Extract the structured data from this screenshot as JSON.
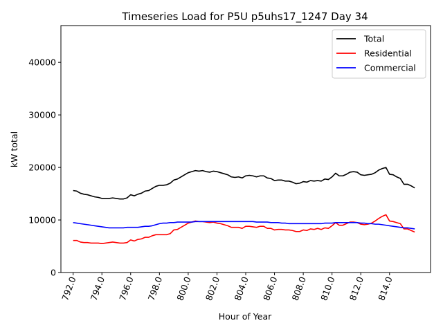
{
  "chart_data": {
    "type": "line",
    "title": "Timeseries Load for P5U p5uhs17_1247  Day 34",
    "xlabel": "Hour of Year",
    "ylabel": "kW total",
    "xlim": [
      791.15,
      816.85
    ],
    "ylim": [
      0,
      47000
    ],
    "xticks": [
      792,
      794,
      796,
      798,
      800,
      802,
      804,
      806,
      808,
      810,
      812,
      814
    ],
    "xtick_labels": [
      "792.0",
      "794.0",
      "796.0",
      "798.0",
      "800.0",
      "802.0",
      "804.0",
      "806.0",
      "808.0",
      "810.0",
      "812.0",
      "814.0"
    ],
    "yticks": [
      0,
      10000,
      20000,
      30000,
      40000
    ],
    "ytick_labels": [
      "0",
      "10000",
      "20000",
      "30000",
      "40000"
    ],
    "legend_position": "top-right",
    "x": [
      792.0,
      792.25,
      792.5,
      792.75,
      793.0,
      793.25,
      793.5,
      793.75,
      794.0,
      794.25,
      794.5,
      794.75,
      795.0,
      795.25,
      795.5,
      795.75,
      796.0,
      796.25,
      796.5,
      796.75,
      797.0,
      797.25,
      797.5,
      797.75,
      798.0,
      798.25,
      798.5,
      798.75,
      799.0,
      799.25,
      799.5,
      799.75,
      800.0,
      800.25,
      800.5,
      800.75,
      801.0,
      801.25,
      801.5,
      801.75,
      802.0,
      802.25,
      802.5,
      802.75,
      803.0,
      803.25,
      803.5,
      803.75,
      804.0,
      804.25,
      804.5,
      804.75,
      805.0,
      805.25,
      805.5,
      805.75,
      806.0,
      806.25,
      806.5,
      806.75,
      807.0,
      807.25,
      807.5,
      807.75,
      808.0,
      808.25,
      808.5,
      808.75,
      809.0,
      809.25,
      809.5,
      809.75,
      810.0,
      810.25,
      810.5,
      810.75,
      811.0,
      811.25,
      811.5,
      811.75,
      812.0,
      812.25,
      812.5,
      812.75,
      813.0,
      813.25,
      813.5,
      813.75,
      814.0,
      814.25,
      814.5,
      814.75,
      815.0,
      815.25,
      815.5,
      815.75
    ],
    "series": [
      {
        "name": "Total",
        "color": "#000000",
        "values": [
          15600,
          15500,
          15100,
          14900,
          14800,
          14600,
          14400,
          14300,
          14100,
          14100,
          14100,
          14200,
          14100,
          14000,
          14000,
          14200,
          14800,
          14600,
          14900,
          15100,
          15500,
          15600,
          16000,
          16400,
          16600,
          16600,
          16700,
          17000,
          17600,
          17800,
          18200,
          18600,
          19000,
          19200,
          19400,
          19300,
          19400,
          19200,
          19100,
          19300,
          19200,
          19000,
          18800,
          18600,
          18200,
          18100,
          18200,
          18000,
          18400,
          18500,
          18400,
          18200,
          18400,
          18400,
          18000,
          17900,
          17500,
          17600,
          17600,
          17400,
          17400,
          17200,
          16900,
          17000,
          17300,
          17200,
          17500,
          17400,
          17500,
          17400,
          17800,
          17700,
          18200,
          18900,
          18400,
          18400,
          18700,
          19100,
          19200,
          19100,
          18600,
          18500,
          18600,
          18700,
          19000,
          19500,
          19800,
          20000,
          18700,
          18600,
          18200,
          17900,
          16800,
          16800,
          16500,
          16100
        ]
      },
      {
        "name": "Residential",
        "color": "#ff0000",
        "values": [
          6100,
          6100,
          5800,
          5700,
          5700,
          5600,
          5600,
          5600,
          5500,
          5600,
          5700,
          5800,
          5700,
          5600,
          5600,
          5700,
          6200,
          6000,
          6300,
          6400,
          6700,
          6700,
          7000,
          7200,
          7200,
          7200,
          7200,
          7400,
          8100,
          8200,
          8600,
          9000,
          9400,
          9600,
          9800,
          9700,
          9700,
          9600,
          9500,
          9600,
          9400,
          9300,
          9100,
          8900,
          8600,
          8600,
          8600,
          8400,
          8800,
          8800,
          8700,
          8600,
          8800,
          8800,
          8400,
          8400,
          8100,
          8200,
          8200,
          8100,
          8100,
          8000,
          7800,
          7800,
          8100,
          8000,
          8300,
          8200,
          8400,
          8200,
          8500,
          8400,
          8900,
          9500,
          9000,
          9000,
          9300,
          9600,
          9600,
          9500,
          9200,
          9100,
          9200,
          9400,
          9800,
          10300,
          10700,
          11000,
          9800,
          9700,
          9500,
          9300,
          8300,
          8300,
          8000,
          7700
        ]
      },
      {
        "name": "Commercial",
        "color": "#0000ff",
        "values": [
          9500,
          9400,
          9300,
          9200,
          9100,
          9000,
          8900,
          8800,
          8700,
          8600,
          8500,
          8500,
          8500,
          8500,
          8500,
          8600,
          8600,
          8600,
          8600,
          8700,
          8800,
          8800,
          8900,
          9100,
          9300,
          9400,
          9400,
          9500,
          9500,
          9600,
          9600,
          9600,
          9600,
          9600,
          9700,
          9700,
          9700,
          9700,
          9700,
          9700,
          9700,
          9700,
          9700,
          9700,
          9700,
          9700,
          9700,
          9700,
          9700,
          9700,
          9700,
          9600,
          9600,
          9600,
          9600,
          9500,
          9500,
          9500,
          9400,
          9400,
          9300,
          9300,
          9300,
          9300,
          9300,
          9300,
          9300,
          9300,
          9300,
          9300,
          9400,
          9400,
          9400,
          9500,
          9500,
          9500,
          9500,
          9500,
          9500,
          9500,
          9400,
          9400,
          9300,
          9300,
          9200,
          9200,
          9100,
          9000,
          8900,
          8800,
          8700,
          8600,
          8500,
          8500,
          8400,
          8300
        ]
      }
    ]
  }
}
